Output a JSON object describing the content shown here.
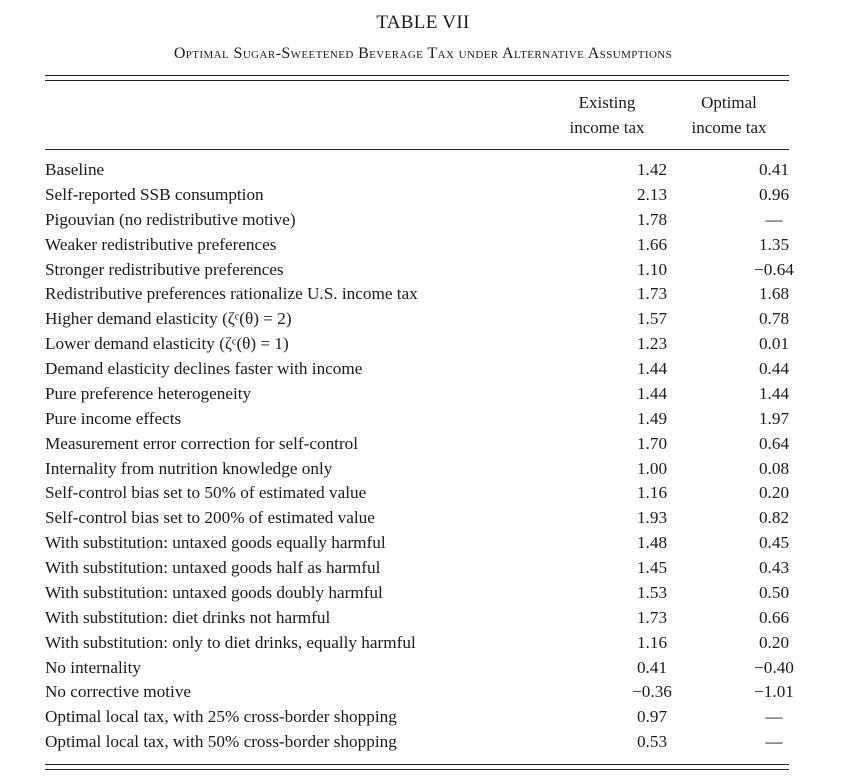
{
  "table": {
    "title": "TABLE VII",
    "subtitle": "Optimal Sugar-Sweetened Beverage Tax under Alternative Assumptions",
    "columns": [
      {
        "line1": "Existing",
        "line2": "income tax"
      },
      {
        "line1": "Optimal",
        "line2": "income tax"
      }
    ],
    "rows": [
      {
        "label": "Baseline",
        "existing": "1.42",
        "optimal": "0.41"
      },
      {
        "label": "Self-reported SSB consumption",
        "existing": "2.13",
        "optimal": "0.96"
      },
      {
        "label": "Pigouvian (no redistributive motive)",
        "existing": "1.78",
        "optimal": "—"
      },
      {
        "label": "Weaker redistributive preferences",
        "existing": "1.66",
        "optimal": "1.35"
      },
      {
        "label": "Stronger redistributive preferences",
        "existing": "1.10",
        "optimal": "−0.64"
      },
      {
        "label": "Redistributive preferences rationalize U.S. income tax",
        "existing": "1.73",
        "optimal": "1.68"
      },
      {
        "label": "Higher demand elasticity (ζᶜ(θ) = 2)",
        "existing": "1.57",
        "optimal": "0.78"
      },
      {
        "label": "Lower demand elasticity (ζᶜ(θ) = 1)",
        "existing": "1.23",
        "optimal": "0.01"
      },
      {
        "label": "Demand elasticity declines faster with income",
        "existing": "1.44",
        "optimal": "0.44"
      },
      {
        "label": "Pure preference heterogeneity",
        "existing": "1.44",
        "optimal": "1.44"
      },
      {
        "label": "Pure income effects",
        "existing": "1.49",
        "optimal": "1.97"
      },
      {
        "label": "Measurement error correction for self-control",
        "existing": "1.70",
        "optimal": "0.64"
      },
      {
        "label": "Internality from nutrition knowledge only",
        "existing": "1.00",
        "optimal": "0.08"
      },
      {
        "label": "Self-control bias set to 50% of estimated value",
        "existing": "1.16",
        "optimal": "0.20"
      },
      {
        "label": "Self-control bias set to 200% of estimated value",
        "existing": "1.93",
        "optimal": "0.82"
      },
      {
        "label": "With substitution: untaxed goods equally harmful",
        "existing": "1.48",
        "optimal": "0.45"
      },
      {
        "label": "With substitution: untaxed goods half as harmful",
        "existing": "1.45",
        "optimal": "0.43"
      },
      {
        "label": "With substitution: untaxed goods doubly harmful",
        "existing": "1.53",
        "optimal": "0.50"
      },
      {
        "label": "With substitution: diet drinks not harmful",
        "existing": "1.73",
        "optimal": "0.66"
      },
      {
        "label": "With substitution: only to diet drinks, equally harmful",
        "existing": "1.16",
        "optimal": "0.20"
      },
      {
        "label": "No internality",
        "existing": "0.41",
        "optimal": "−0.40"
      },
      {
        "label": "No corrective motive",
        "existing": "−0.36",
        "optimal": "−1.01"
      },
      {
        "label": "Optimal local tax, with 25% cross-border shopping",
        "existing": "0.97",
        "optimal": "—"
      },
      {
        "label": "Optimal local tax, with 50% cross-border shopping",
        "existing": "0.53",
        "optimal": "—"
      }
    ]
  }
}
